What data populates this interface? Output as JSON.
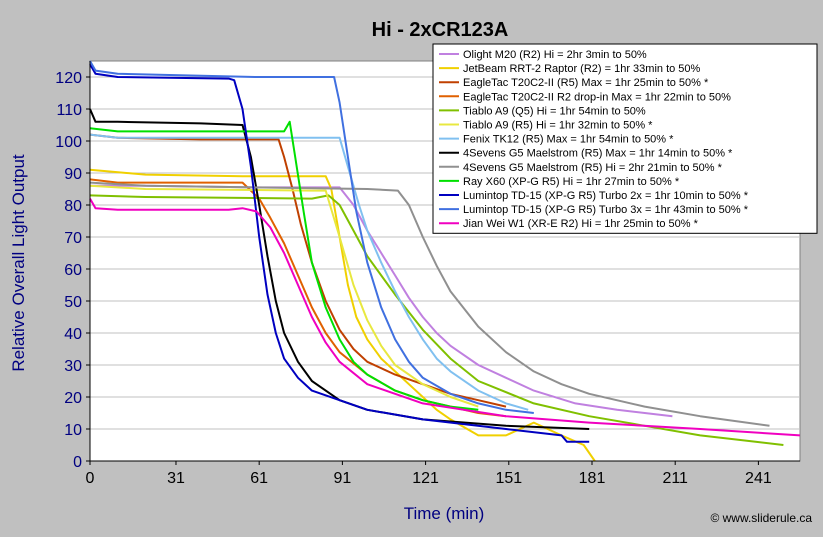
{
  "chart_data": {
    "type": "line",
    "title": "Hi - 2xCR123A",
    "xlabel": "Time (min)",
    "ylabel": "Relative Overall Light Output",
    "xlim": [
      0,
      256
    ],
    "ylim": [
      0,
      125
    ],
    "xticks": [
      0,
      31,
      61,
      91,
      121,
      151,
      181,
      211,
      241
    ],
    "yticks": [
      0,
      10,
      20,
      30,
      40,
      50,
      60,
      70,
      80,
      90,
      100,
      110,
      120
    ],
    "grid": "horizontal",
    "legend_position": "top-right",
    "credit": "© www.sliderule.ca",
    "colors": {
      "plot_bg": "#ffffff",
      "outer_bg": "#c0c0c0",
      "axis_text": "#000080",
      "grid": "#c0c0c0"
    },
    "series": [
      {
        "name": "Olight M20 (R2) Hi = 2hr 3min to 50%",
        "color": "#c080e0",
        "x": [
          0,
          20,
          60,
          90,
          95,
          100,
          105,
          110,
          115,
          120,
          125,
          130,
          140,
          150,
          160,
          175,
          190,
          200,
          210
        ],
        "y": [
          86,
          86,
          85.5,
          85.5,
          80,
          72,
          65,
          58,
          51,
          45,
          40,
          36,
          30,
          26,
          22,
          18,
          16,
          15,
          14
        ]
      },
      {
        "name": "JetBeam RRT-2 Raptor (R2) = 1hr 33min to 50%",
        "color": "#f0d000",
        "x": [
          0,
          20,
          55,
          85,
          87,
          90,
          93,
          96,
          100,
          105,
          110,
          115,
          120,
          125,
          130,
          140,
          150,
          160,
          170,
          178,
          182
        ],
        "y": [
          91,
          89.5,
          89,
          89,
          85,
          70,
          55,
          45,
          38,
          32,
          28,
          24,
          20,
          16,
          13,
          8,
          8,
          12,
          8,
          5,
          0
        ]
      },
      {
        "name": "EagleTac T20C2-II (R5) Max = 1hr 25min to 50% *",
        "color": "#c04000",
        "x": [
          0,
          10,
          40,
          68,
          70,
          73,
          76,
          80,
          85,
          90,
          95,
          100,
          110,
          120,
          130,
          140,
          150
        ],
        "y": [
          102,
          101,
          100.5,
          100.5,
          95,
          85,
          74,
          62,
          50,
          41,
          35,
          31,
          27,
          24,
          21,
          19,
          17
        ]
      },
      {
        "name": "EagleTac T20C2-II R2 drop-in Max = 1hr 22min to 50%",
        "color": "#e06000",
        "x": [
          0,
          10,
          55,
          61,
          65,
          70,
          75,
          80,
          85,
          90,
          100,
          110,
          120,
          130,
          140,
          150
        ],
        "y": [
          88,
          87,
          87,
          82,
          76,
          68,
          58,
          48,
          40,
          34,
          27,
          22,
          19,
          17,
          15,
          14
        ]
      },
      {
        "name": "Tiablo A9 (Q5) Hi = 1hr 54min to 50%",
        "color": "#80c000",
        "x": [
          0,
          20,
          80,
          86,
          90,
          95,
          100,
          110,
          120,
          130,
          140,
          160,
          180,
          200,
          220,
          240,
          250
        ],
        "y": [
          83,
          82.5,
          82,
          83,
          80,
          72,
          64,
          52,
          41,
          32,
          25,
          18,
          14,
          11,
          8,
          6,
          5
        ]
      },
      {
        "name": "Tiablo A9 (R5) Hi = 1hr 32min to 50% *",
        "color": "#e8e840",
        "x": [
          0,
          20,
          80,
          85,
          90,
          95,
          100,
          105,
          110,
          120,
          130,
          140
        ],
        "y": [
          86,
          85,
          84.5,
          84.5,
          70,
          55,
          44,
          36,
          30,
          24,
          20,
          17
        ]
      },
      {
        "name": "Fenix TK12 (R5) Max = 1hr 54min to 50% *",
        "color": "#80c0f0",
        "x": [
          0,
          10,
          70,
          90,
          93,
          97,
          100,
          105,
          110,
          115,
          120,
          125,
          130,
          140,
          150,
          158
        ],
        "y": [
          102,
          101,
          101,
          101,
          92,
          80,
          72,
          62,
          53,
          45,
          38,
          32,
          28,
          22,
          18,
          16
        ]
      },
      {
        "name": "4Sevens G5 Maelstrom (R5) Max = 1hr 14min to 50% *",
        "color": "#000000",
        "x": [
          0,
          2,
          10,
          40,
          55,
          58,
          61,
          64,
          67,
          70,
          75,
          80,
          90,
          100,
          120,
          150,
          180
        ],
        "y": [
          110,
          106,
          106,
          105.5,
          105,
          95,
          80,
          64,
          50,
          40,
          31,
          25,
          19,
          16,
          13,
          11,
          10
        ]
      },
      {
        "name": "4Sevens G5 Maelstrom (R5) Hi = 2hr 21min to 50% *",
        "color": "#909090",
        "x": [
          0,
          20,
          100,
          111,
          115,
          120,
          125,
          130,
          140,
          150,
          160,
          170,
          180,
          200,
          220,
          245
        ],
        "y": [
          87,
          86,
          85,
          84.5,
          80,
          70,
          61,
          53,
          42,
          34,
          28,
          24,
          21,
          17,
          14,
          11
        ]
      },
      {
        "name": "Ray X60 (XP-G R5) Hi = 1hr 27min to 50% *",
        "color": "#00e000",
        "x": [
          0,
          10,
          70,
          72,
          74,
          77,
          80,
          85,
          90,
          95,
          100,
          110,
          120,
          130,
          140
        ],
        "y": [
          104,
          103,
          103,
          106,
          95,
          78,
          62,
          48,
          38,
          31,
          27,
          22,
          19,
          17,
          16
        ]
      },
      {
        "name": "Lumintop TD-15 (XP-G R5) Turbo 2x = 1hr 10min to 50% *",
        "color": "#0000c0",
        "x": [
          0,
          2,
          10,
          50,
          52,
          55,
          58,
          61,
          64,
          67,
          70,
          75,
          80,
          90,
          100,
          120,
          150,
          170,
          172,
          180
        ],
        "y": [
          124,
          121,
          120,
          119.5,
          119,
          110,
          92,
          70,
          52,
          40,
          32,
          26,
          22,
          19,
          16,
          13,
          10,
          8,
          6,
          6
        ]
      },
      {
        "name": "Lumintop TD-15 (XP-G R5) Turbo 3x = 1hr 43min to 50% *",
        "color": "#4070e0",
        "x": [
          0,
          2,
          10,
          60,
          88,
          90,
          93,
          96,
          100,
          105,
          110,
          115,
          120,
          130,
          140,
          150,
          160
        ],
        "y": [
          125,
          122,
          121,
          120,
          120,
          112,
          95,
          78,
          62,
          48,
          38,
          31,
          26,
          21,
          18,
          16,
          15
        ]
      },
      {
        "name": "Jian Wei W1 (XR-E R2) Hi = 1hr 25min to 50% *",
        "color": "#f000c0",
        "x": [
          0,
          2,
          10,
          50,
          55,
          60,
          65,
          70,
          75,
          80,
          85,
          90,
          100,
          120,
          150,
          180,
          220,
          256
        ],
        "y": [
          82,
          79,
          78.5,
          78.5,
          79,
          78,
          73,
          65,
          55,
          45,
          37,
          31,
          24,
          18,
          14,
          12,
          10,
          8
        ]
      }
    ]
  }
}
